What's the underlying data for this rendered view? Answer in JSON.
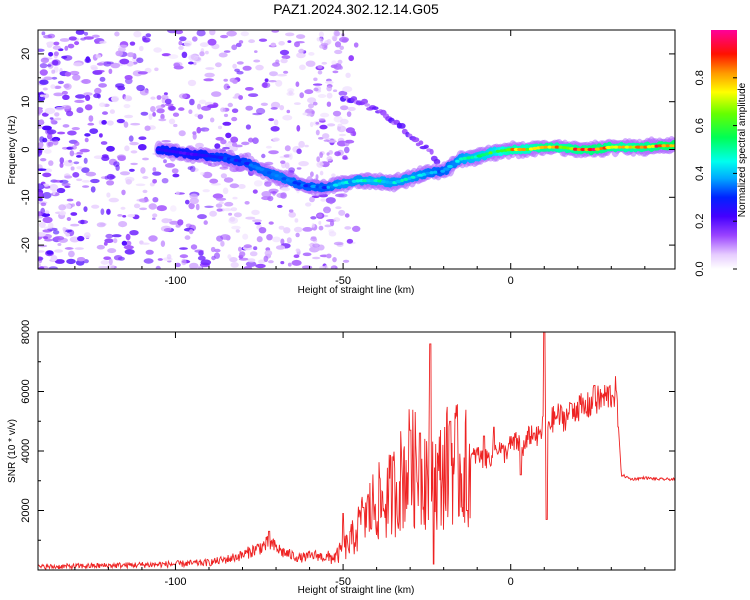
{
  "title": "PAZ1.2024.302.12.14.G05",
  "chart_data": [
    {
      "type": "heatmap",
      "name": "spectrogram",
      "xlabel": "Height of straight line (km)",
      "ylabel": "Frequency (Hz)",
      "xlim": [
        -141,
        49
      ],
      "ylim": [
        -25,
        25
      ],
      "xticks": [
        -100,
        -50,
        0
      ],
      "yticks": [
        -20,
        -10,
        0,
        10,
        20
      ],
      "colorbar": {
        "label": "Normalized spectral amplitude",
        "range": [
          0.0,
          1.0
        ],
        "ticks": [
          0.0,
          0.2,
          0.4,
          0.6,
          0.8
        ],
        "colormap": "rainbow (white-violet-blue-cyan-green-yellow-red-magenta)"
      },
      "ridge": {
        "description": "dominant frequency track",
        "x": [
          -105,
          -95,
          -88,
          -80,
          -75,
          -68,
          -62,
          -55,
          -50,
          -45,
          -40,
          -35,
          -30,
          -25,
          -20,
          -15,
          -10,
          -5,
          0,
          5,
          10,
          15,
          20,
          25,
          30,
          35,
          40,
          45,
          49
        ],
        "y": [
          0,
          -1,
          -1.5,
          -2.5,
          -4,
          -6,
          -7.5,
          -8,
          -7,
          -6.5,
          -6.5,
          -7,
          -6,
          -5,
          -4.5,
          -2,
          -1.5,
          -0.5,
          0,
          0,
          0.5,
          0.5,
          0,
          0,
          0.5,
          0.5,
          0.5,
          0.8,
          0.8
        ],
        "amplitude": [
          0.25,
          0.2,
          0.3,
          0.3,
          0.35,
          0.4,
          0.35,
          0.35,
          0.45,
          0.45,
          0.5,
          0.45,
          0.45,
          0.4,
          0.35,
          0.45,
          0.55,
          0.6,
          0.8,
          0.75,
          0.85,
          0.8,
          0.85,
          0.9,
          0.85,
          0.8,
          0.85,
          0.9,
          0.95
        ]
      },
      "branch": {
        "description": "secondary branch",
        "x": [
          -50,
          -45,
          -40,
          -35,
          -30,
          -25,
          -22
        ],
        "y": [
          11,
          10,
          8,
          6,
          3,
          0,
          -2
        ]
      }
    },
    {
      "type": "line",
      "name": "snr",
      "xlabel": "Height of straight line (km)",
      "ylabel": "SNR (10 * v/v)",
      "xlim": [
        -141,
        49
      ],
      "ylim": [
        0,
        8000
      ],
      "xticks": [
        -100,
        -50,
        0
      ],
      "yticks": [
        2000,
        4000,
        6000,
        8000
      ],
      "color": "#ee2222",
      "baseline": {
        "x": [
          -141,
          -120,
          -100,
          -90,
          -85,
          -80,
          -76,
          -72,
          -68,
          -63,
          -58,
          -55,
          -52,
          -50,
          -48,
          -46,
          -44,
          -42,
          -40,
          -38,
          -36,
          -34,
          -32,
          -30,
          -28,
          -26,
          -24,
          -22,
          -20,
          -18,
          -16,
          -14,
          -12,
          -10,
          -8,
          -6,
          -4,
          -2,
          0,
          2,
          4,
          6,
          8,
          10,
          12,
          14,
          16,
          18,
          20,
          22,
          24,
          26,
          28,
          30,
          31.5,
          33,
          36,
          40,
          44,
          49
        ],
        "y": [
          100,
          150,
          200,
          250,
          350,
          500,
          700,
          900,
          600,
          400,
          500,
          400,
          450,
          700,
          900,
          1300,
          1700,
          2000,
          2300,
          2200,
          2500,
          2800,
          3200,
          3500,
          3300,
          3400,
          3200,
          3000,
          3300,
          3700,
          3500,
          3300,
          3700,
          3900,
          3700,
          3800,
          4200,
          3900,
          4200,
          4300,
          4100,
          4600,
          4400,
          4900,
          5000,
          5200,
          5100,
          5300,
          5500,
          5400,
          5600,
          5700,
          5800,
          5900,
          6000,
          3200,
          3050,
          3100,
          3050,
          3050
        ]
      },
      "spikes": {
        "x": [
          -72,
          -50,
          -44,
          -30,
          -27,
          -24,
          -23,
          -18,
          -13,
          -8,
          -5,
          3,
          7,
          10,
          10.7,
          18,
          25
        ],
        "y": [
          1300,
          1900,
          2100,
          4700,
          4600,
          7600,
          200,
          5000,
          2000,
          4500,
          4800,
          3200,
          4600,
          8050,
          1700,
          5600,
          6200
        ]
      }
    }
  ]
}
